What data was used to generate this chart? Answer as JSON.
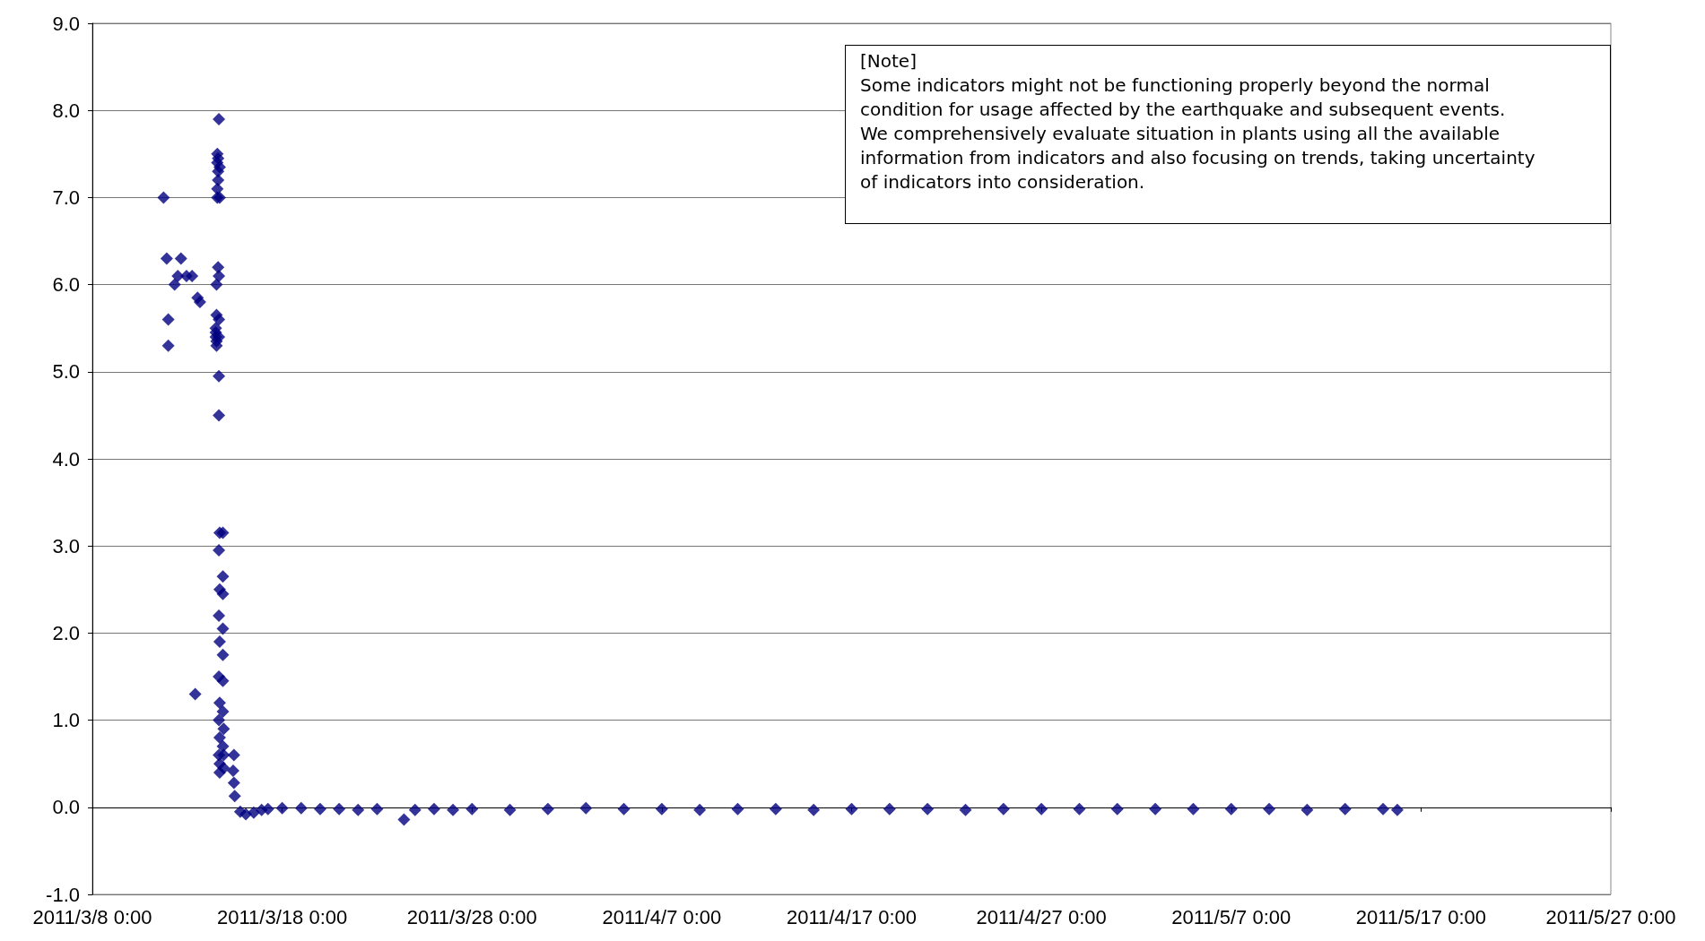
{
  "chart_data": {
    "type": "scatter",
    "color": "#000080",
    "marker": "diamond",
    "grid": "y",
    "annotations": [
      "[Note]\nSome indicators might not be functioning properly beyond the normal\ncondition for usage affected by the earthquake and subsequent events.\nWe comprehensively evaluate situation in plants using all the available\ninformation from indicators and also focusing on trends, taking uncertainty\nof indicators into consideration."
    ],
    "xlim": [
      "2011-03-08T00:00",
      "2011-05-27T00:00"
    ],
    "xticks": [
      {
        "value": "2011-03-08T00:00",
        "label": "2011/3/8 0:00"
      },
      {
        "value": "2011-03-18T00:00",
        "label": "2011/3/18 0:00"
      },
      {
        "value": "2011-03-28T00:00",
        "label": "2011/3/28 0:00"
      },
      {
        "value": "2011-04-07T00:00",
        "label": "2011/4/7 0:00"
      },
      {
        "value": "2011-04-17T00:00",
        "label": "2011/4/17 0:00"
      },
      {
        "value": "2011-04-27T00:00",
        "label": "2011/4/27 0:00"
      },
      {
        "value": "2011-05-07T00:00",
        "label": "2011/5/7 0:00"
      },
      {
        "value": "2011-05-17T00:00",
        "label": "2011/5/17 0:00"
      },
      {
        "value": "2011-05-27T00:00",
        "label": "2011/5/27 0:00"
      }
    ],
    "ylim": [
      -1,
      9
    ],
    "yticks": [
      {
        "value": -1,
        "label": "-1.0"
      },
      {
        "value": 0,
        "label": "0.0"
      },
      {
        "value": 1,
        "label": "1.0"
      },
      {
        "value": 2,
        "label": "2.0"
      },
      {
        "value": 3,
        "label": "3.0"
      },
      {
        "value": 4,
        "label": "4.0"
      },
      {
        "value": 5,
        "label": "5.0"
      },
      {
        "value": 6,
        "label": "6.0"
      },
      {
        "value": 7,
        "label": "7.0"
      },
      {
        "value": 8,
        "label": "8.0"
      },
      {
        "value": 9,
        "label": "9.0"
      }
    ],
    "x": [
      "2011-03-11T18:00",
      "2011-03-11T22:00",
      "2011-03-12T00:00",
      "2011-03-12T00:00",
      "2011-03-12T08:00",
      "2011-03-12T12:00",
      "2011-03-12T16:00",
      "2011-03-12T23:00",
      "2011-03-13T06:00",
      "2011-03-13T10:00",
      "2011-03-13T13:00",
      "2011-03-13T16:00",
      "2011-03-14T12:00",
      "2011-03-14T12:00",
      "2011-03-14T12:00",
      "2011-03-14T13:00",
      "2011-03-14T13:00",
      "2011-03-14T13:00",
      "2011-03-14T13:00",
      "2011-03-14T14:00",
      "2011-03-14T14:00",
      "2011-03-14T14:00",
      "2011-03-14T14:00",
      "2011-03-14T15:00",
      "2011-03-14T15:00",
      "2011-03-14T15:00",
      "2011-03-14T15:00",
      "2011-03-14T16:00",
      "2011-03-14T16:00",
      "2011-03-14T16:00",
      "2011-03-14T16:00",
      "2011-03-14T16:00",
      "2011-03-14T16:00",
      "2011-03-14T17:00",
      "2011-03-14T17:00",
      "2011-03-14T16:00",
      "2011-03-14T16:00",
      "2011-03-14T16:00",
      "2011-03-14T16:00",
      "2011-03-14T16:00",
      "2011-03-14T17:00",
      "2011-03-14T17:00",
      "2011-03-14T17:00",
      "2011-03-14T17:00",
      "2011-03-14T17:00",
      "2011-03-14T17:00",
      "2011-03-14T17:00",
      "2011-03-14T21:00",
      "2011-03-14T21:00",
      "2011-03-14T21:00",
      "2011-03-14T21:00",
      "2011-03-14T21:00",
      "2011-03-14T21:00",
      "2011-03-14T21:00",
      "2011-03-14T21:00",
      "2011-03-14T22:00",
      "2011-03-14T22:00",
      "2011-03-14T22:00",
      "2011-03-15T11:00",
      "2011-03-15T10:00",
      "2011-03-15T11:00",
      "2011-03-15T12:00",
      "2011-03-15T19:00",
      "2011-03-16T02:00",
      "2011-03-16T12:00",
      "2011-03-16T22:00",
      "2011-03-17T06:00",
      "2011-03-18T00:00",
      "2011-03-19T00:00",
      "2011-03-20T00:00",
      "2011-03-21T00:00",
      "2011-03-22T00:00",
      "2011-03-23T00:00",
      "2011-03-24T10:00",
      "2011-03-25T00:00",
      "2011-03-26T00:00",
      "2011-03-27T00:00",
      "2011-03-28T00:00",
      "2011-03-30T00:00",
      "2011-04-01T00:00",
      "2011-04-03T00:00",
      "2011-04-05T00:00",
      "2011-04-07T00:00",
      "2011-04-09T00:00",
      "2011-04-11T00:00",
      "2011-04-13T00:00",
      "2011-04-15T00:00",
      "2011-04-17T00:00",
      "2011-04-19T00:00",
      "2011-04-21T00:00",
      "2011-04-23T00:00",
      "2011-04-25T00:00",
      "2011-04-27T00:00",
      "2011-04-29T00:00",
      "2011-05-01T00:00",
      "2011-05-03T00:00",
      "2011-05-05T00:00",
      "2011-05-07T00:00",
      "2011-05-09T00:00",
      "2011-05-11T00:00",
      "2011-05-13T00:00",
      "2011-05-15T00:00",
      "2011-05-15T18:00"
    ],
    "values": [
      7.0,
      6.3,
      5.6,
      5.3,
      6.0,
      6.1,
      6.3,
      6.1,
      6.1,
      1.3,
      5.85,
      5.8,
      5.5,
      5.45,
      5.4,
      5.35,
      5.3,
      5.65,
      6.0,
      7.1,
      7.0,
      7.5,
      7.4,
      7.3,
      7.45,
      7.2,
      6.2,
      7.9,
      6.1,
      5.6,
      5.4,
      4.95,
      4.5,
      7.35,
      7.0,
      2.95,
      2.2,
      1.5,
      1.0,
      0.6,
      3.15,
      2.5,
      1.9,
      1.2,
      0.8,
      0.5,
      0.4,
      3.15,
      2.65,
      2.45,
      2.05,
      1.75,
      1.45,
      1.1,
      0.7,
      0.9,
      0.6,
      0.45,
      0.6,
      0.42,
      0.28,
      0.13,
      -0.05,
      -0.08,
      -0.06,
      -0.03,
      -0.02,
      -0.01,
      -0.01,
      -0.02,
      -0.02,
      -0.03,
      -0.02,
      -0.14,
      -0.03,
      -0.02,
      -0.03,
      -0.02,
      -0.03,
      -0.02,
      -0.01,
      -0.02,
      -0.02,
      -0.03,
      -0.02,
      -0.02,
      -0.03,
      -0.02,
      -0.02,
      -0.02,
      -0.03,
      -0.02,
      -0.02,
      -0.02,
      -0.02,
      -0.02,
      -0.02,
      -0.02,
      -0.02,
      -0.03,
      -0.02,
      -0.02,
      -0.03
    ]
  }
}
